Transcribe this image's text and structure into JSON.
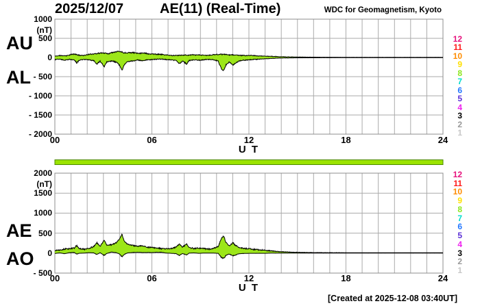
{
  "header": {
    "date": "2025/12/07",
    "title": "AE(11) (Real-Time)",
    "org": "WDC for Geomagnetism, Kyoto"
  },
  "footer": {
    "created": "[Created at 2025-12-08 03:40UT]"
  },
  "legend": {
    "counts": [
      "12",
      "11",
      "10",
      "9",
      "8",
      "7",
      "6",
      "5",
      "4",
      "3",
      "2",
      "1"
    ],
    "colors": [
      "#e6127d",
      "#ff1a1a",
      "#ff8c00",
      "#ffe000",
      "#8ce61e",
      "#00ddcc",
      "#2277ff",
      "#5b2fd6",
      "#ee22ee",
      "#000000",
      "#999999",
      "#c8c8c8"
    ]
  },
  "availability_bar": {
    "fill": "#9be300",
    "border": "#4c8a00"
  },
  "style": {
    "fill": "#9ce619",
    "outline": "#000000",
    "grid": "#aaaaaa",
    "border": "#8c8c8c",
    "background": "#ffffff"
  },
  "chart_data": [
    {
      "type": "area",
      "panel": "AU-AL",
      "unit": "(nT)",
      "xlabel": "U T",
      "xticks": [
        "00",
        "06",
        "12",
        "18",
        "24"
      ],
      "xtick_values": [
        0,
        6,
        12,
        18,
        24
      ],
      "xlim": [
        0,
        24
      ],
      "ylim": [
        -2000,
        1000
      ],
      "yticks": [
        1000,
        500,
        0,
        -500,
        -1000,
        -1500,
        -2000
      ],
      "ytick_labels": [
        "1000",
        "500",
        "0",
        "- 500",
        "- 1000",
        "- 1500",
        "- 2000"
      ],
      "grid": true,
      "series": [
        {
          "name": "AU",
          "points": [
            [
              0,
              35
            ],
            [
              0.3,
              50
            ],
            [
              0.7,
              45
            ],
            [
              1,
              75
            ],
            [
              1.2,
              90
            ],
            [
              1.5,
              60
            ],
            [
              1.8,
              55
            ],
            [
              2.1,
              80
            ],
            [
              2.4,
              95
            ],
            [
              2.7,
              110
            ],
            [
              3,
              120
            ],
            [
              3.3,
              100
            ],
            [
              3.6,
              140
            ],
            [
              3.9,
              160
            ],
            [
              4.1,
              150
            ],
            [
              4.3,
              120
            ],
            [
              4.6,
              130
            ],
            [
              4.9,
              125
            ],
            [
              5.2,
              110
            ],
            [
              5.5,
              120
            ],
            [
              5.8,
              95
            ],
            [
              6.1,
              90
            ],
            [
              6.4,
              85
            ],
            [
              6.7,
              75
            ],
            [
              7,
              60
            ],
            [
              7.3,
              50
            ],
            [
              7.6,
              55
            ],
            [
              7.9,
              65
            ],
            [
              8.2,
              60
            ],
            [
              8.5,
              70
            ],
            [
              8.8,
              65
            ],
            [
              9.1,
              60
            ],
            [
              9.4,
              55
            ],
            [
              9.7,
              65
            ],
            [
              10,
              80
            ],
            [
              10.3,
              85
            ],
            [
              10.6,
              75
            ],
            [
              10.9,
              70
            ],
            [
              11.2,
              65
            ],
            [
              11.5,
              55
            ],
            [
              11.8,
              50
            ],
            [
              12.1,
              55
            ],
            [
              12.4,
              45
            ],
            [
              12.7,
              40
            ],
            [
              13,
              35
            ],
            [
              13.4,
              30
            ],
            [
              13.8,
              22
            ],
            [
              14.5,
              15
            ],
            [
              15.5,
              10
            ],
            [
              16.5,
              8
            ],
            [
              18,
              6
            ],
            [
              20,
              6
            ],
            [
              22,
              6
            ],
            [
              24,
              6
            ]
          ]
        },
        {
          "name": "AL",
          "points": [
            [
              0,
              -55
            ],
            [
              0.3,
              -40
            ],
            [
              0.6,
              -70
            ],
            [
              0.9,
              -50
            ],
            [
              1.2,
              -60
            ],
            [
              1.35,
              -140
            ],
            [
              1.5,
              -70
            ],
            [
              1.8,
              -50
            ],
            [
              2.1,
              -60
            ],
            [
              2.4,
              -80
            ],
            [
              2.6,
              -180
            ],
            [
              2.8,
              -90
            ],
            [
              3.05,
              -240
            ],
            [
              3.2,
              -120
            ],
            [
              3.5,
              -90
            ],
            [
              3.8,
              -120
            ],
            [
              4,
              -200
            ],
            [
              4.15,
              -340
            ],
            [
              4.3,
              -180
            ],
            [
              4.5,
              -110
            ],
            [
              4.8,
              -90
            ],
            [
              5.1,
              -70
            ],
            [
              5.4,
              -80
            ],
            [
              5.7,
              -60
            ],
            [
              6,
              -55
            ],
            [
              6.3,
              -45
            ],
            [
              6.6,
              -40
            ],
            [
              6.9,
              -55
            ],
            [
              7.2,
              -60
            ],
            [
              7.5,
              -80
            ],
            [
              7.7,
              -160
            ],
            [
              7.9,
              -90
            ],
            [
              8.15,
              -175
            ],
            [
              8.3,
              -80
            ],
            [
              8.6,
              -60
            ],
            [
              8.9,
              -70
            ],
            [
              9.2,
              -60
            ],
            [
              9.5,
              -50
            ],
            [
              9.8,
              -60
            ],
            [
              10.1,
              -90
            ],
            [
              10.3,
              -300
            ],
            [
              10.45,
              -340
            ],
            [
              10.6,
              -180
            ],
            [
              10.8,
              -120
            ],
            [
              11,
              -200
            ],
            [
              11.15,
              -150
            ],
            [
              11.4,
              -90
            ],
            [
              11.7,
              -70
            ],
            [
              12,
              -60
            ],
            [
              12.3,
              -50
            ],
            [
              12.6,
              -45
            ],
            [
              13,
              -35
            ],
            [
              13.4,
              -25
            ],
            [
              13.8,
              -16
            ],
            [
              14.5,
              -10
            ],
            [
              15.5,
              -8
            ],
            [
              16.5,
              -6
            ],
            [
              18,
              -5
            ],
            [
              20,
              -5
            ],
            [
              22,
              -5
            ],
            [
              24,
              -5
            ]
          ]
        }
      ]
    },
    {
      "type": "area",
      "panel": "AE-AO",
      "unit": "(nT)",
      "xlabel": "U T",
      "xticks": [
        "00",
        "06",
        "12",
        "18",
        "24"
      ],
      "xtick_values": [
        0,
        6,
        12,
        18,
        24
      ],
      "xlim": [
        0,
        24
      ],
      "ylim": [
        -500,
        2000
      ],
      "yticks": [
        2000,
        1500,
        1000,
        500,
        0,
        -500
      ],
      "ytick_labels": [
        "2000",
        "1500",
        "1000",
        "500",
        "0",
        "- 500"
      ],
      "grid": true,
      "series": [
        {
          "name": "AE",
          "points": [
            [
              0,
              70
            ],
            [
              0.3,
              80
            ],
            [
              0.6,
              100
            ],
            [
              0.9,
              110
            ],
            [
              1.2,
              130
            ],
            [
              1.35,
              190
            ],
            [
              1.5,
              110
            ],
            [
              1.8,
              95
            ],
            [
              2.1,
              120
            ],
            [
              2.4,
              160
            ],
            [
              2.6,
              260
            ],
            [
              2.8,
              170
            ],
            [
              3.05,
              330
            ],
            [
              3.2,
              200
            ],
            [
              3.5,
              210
            ],
            [
              3.8,
              260
            ],
            [
              4,
              350
            ],
            [
              4.15,
              480
            ],
            [
              4.3,
              290
            ],
            [
              4.5,
              220
            ],
            [
              4.8,
              200
            ],
            [
              5.1,
              170
            ],
            [
              5.4,
              185
            ],
            [
              5.7,
              150
            ],
            [
              6,
              140
            ],
            [
              6.3,
              125
            ],
            [
              6.6,
              110
            ],
            [
              6.9,
              110
            ],
            [
              7.2,
              115
            ],
            [
              7.5,
              150
            ],
            [
              7.7,
              230
            ],
            [
              7.9,
              150
            ],
            [
              8.15,
              230
            ],
            [
              8.3,
              140
            ],
            [
              8.6,
              115
            ],
            [
              8.9,
              125
            ],
            [
              9.2,
              115
            ],
            [
              9.5,
              100
            ],
            [
              9.8,
              120
            ],
            [
              10.1,
              160
            ],
            [
              10.3,
              380
            ],
            [
              10.45,
              420
            ],
            [
              10.6,
              250
            ],
            [
              10.8,
              180
            ],
            [
              11,
              260
            ],
            [
              11.15,
              200
            ],
            [
              11.4,
              140
            ],
            [
              11.7,
              120
            ],
            [
              12,
              110
            ],
            [
              12.3,
              95
            ],
            [
              12.6,
              85
            ],
            [
              13,
              70
            ],
            [
              13.4,
              55
            ],
            [
              13.8,
              40
            ],
            [
              14.5,
              25
            ],
            [
              15.5,
              16
            ],
            [
              16.5,
              12
            ],
            [
              18,
              10
            ],
            [
              20,
              9
            ],
            [
              22,
              9
            ],
            [
              24,
              9
            ]
          ]
        },
        {
          "name": "AO",
          "points": [
            [
              0,
              -10
            ],
            [
              0.3,
              5
            ],
            [
              0.6,
              -15
            ],
            [
              0.9,
              10
            ],
            [
              1.2,
              15
            ],
            [
              1.35,
              -25
            ],
            [
              1.5,
              -5
            ],
            [
              1.8,
              0
            ],
            [
              2.1,
              10
            ],
            [
              2.4,
              5
            ],
            [
              2.6,
              -35
            ],
            [
              2.8,
              10
            ],
            [
              3.05,
              -60
            ],
            [
              3.2,
              -10
            ],
            [
              3.5,
              25
            ],
            [
              3.8,
              10
            ],
            [
              4,
              -25
            ],
            [
              4.15,
              -95
            ],
            [
              4.3,
              -30
            ],
            [
              4.5,
              5
            ],
            [
              4.8,
              15
            ],
            [
              5.1,
              20
            ],
            [
              5.4,
              15
            ],
            [
              5.7,
              15
            ],
            [
              6,
              15
            ],
            [
              6.3,
              20
            ],
            [
              6.6,
              20
            ],
            [
              6.9,
              0
            ],
            [
              7.2,
              -5
            ],
            [
              7.5,
              -15
            ],
            [
              7.7,
              -55
            ],
            [
              7.9,
              -10
            ],
            [
              8.15,
              -50
            ],
            [
              8.3,
              0
            ],
            [
              8.6,
              5
            ],
            [
              8.9,
              -5
            ],
            [
              9.2,
              0
            ],
            [
              9.5,
              0
            ],
            [
              9.8,
              0
            ],
            [
              10.1,
              -5
            ],
            [
              10.3,
              -110
            ],
            [
              10.45,
              -130
            ],
            [
              10.6,
              -50
            ],
            [
              10.8,
              -25
            ],
            [
              11,
              -70
            ],
            [
              11.15,
              -50
            ],
            [
              11.4,
              -15
            ],
            [
              11.7,
              -10
            ],
            [
              12,
              -5
            ],
            [
              12.3,
              -5
            ],
            [
              12.6,
              -5
            ],
            [
              13,
              -5
            ],
            [
              13.4,
              0
            ],
            [
              13.8,
              0
            ],
            [
              14.5,
              0
            ],
            [
              15.5,
              0
            ],
            [
              16.5,
              0
            ],
            [
              18,
              0
            ],
            [
              20,
              0
            ],
            [
              22,
              0
            ],
            [
              24,
              0
            ]
          ]
        }
      ]
    }
  ]
}
